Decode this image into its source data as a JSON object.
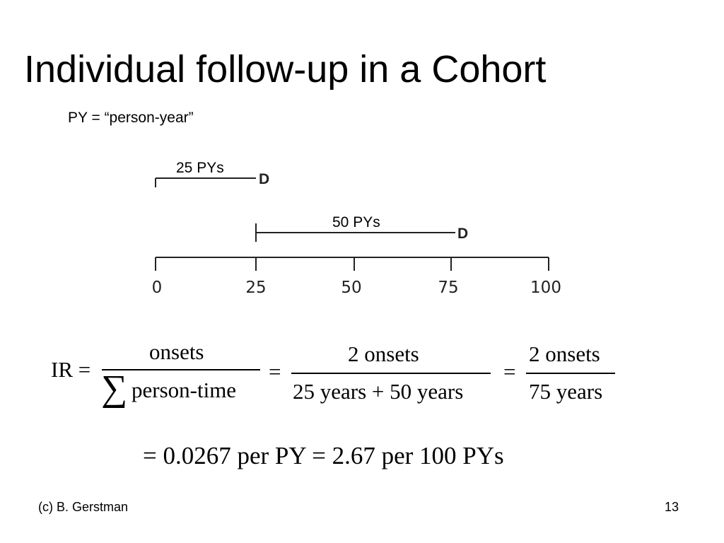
{
  "slide": {
    "title": "Individual follow-up in a Cohort",
    "note": "PY = “person-year”"
  },
  "diagram": {
    "axis_ticks": [
      "0",
      "25",
      "50",
      "75",
      "100"
    ],
    "segments": [
      {
        "label": "25 PYs",
        "start": 0,
        "end": 25,
        "end_mark": "D"
      },
      {
        "label": "50 PYs",
        "start": 25,
        "end": 75,
        "end_mark": "D"
      }
    ]
  },
  "formula": {
    "lhs": "IR =",
    "frac1_num": "onsets",
    "sigma": "∑",
    "frac1_den": "person-time",
    "eq2": "=",
    "frac2_num": "2 onsets",
    "frac2_den": "25 years + 50 years",
    "eq3": "=",
    "frac3_num": "2 onsets",
    "frac3_den": "75 years",
    "result": "= 0.0267 per PY  =  2.67 per 100 PYs"
  },
  "footer": {
    "author": "(c) B. Gerstman",
    "page_number": "13"
  }
}
